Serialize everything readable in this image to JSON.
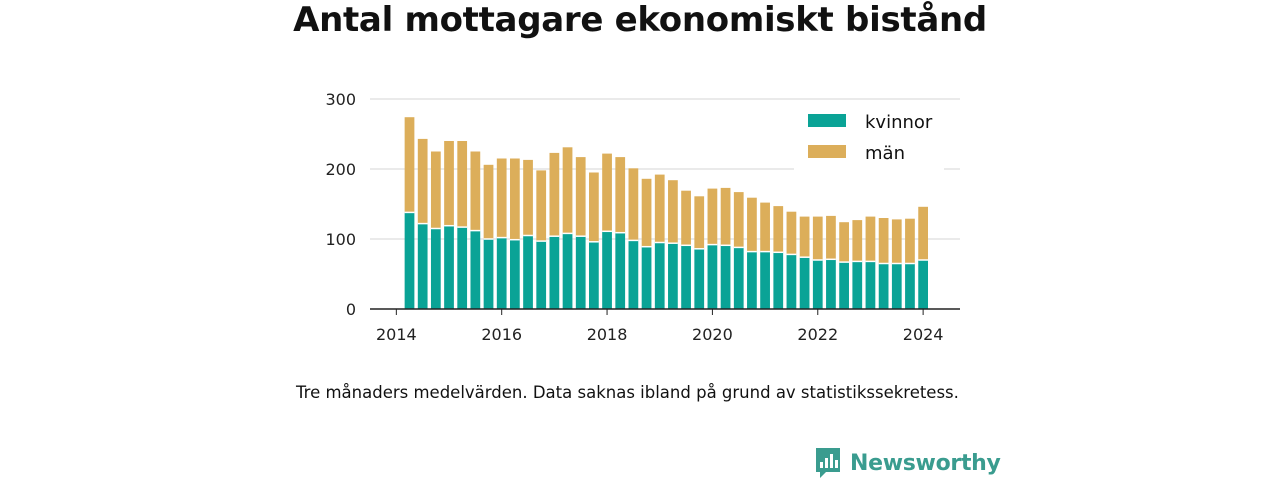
{
  "title": "Antal mottagare ekonomiskt bistånd",
  "footnote": "Tre månaders medelvärden. Data saknas ibland på grund av statistikssekretess.",
  "brand": {
    "name": "Newsworthy",
    "color": "#3a9c8f",
    "icon": "newsworthy-chart-bubble-icon"
  },
  "chart_data": {
    "type": "bar",
    "stacked": true,
    "x_is_time": true,
    "xlim": [
      2013.5,
      2024.7
    ],
    "ylim": [
      0,
      300
    ],
    "x_ticks": [
      2014,
      2016,
      2018,
      2020,
      2022,
      2024
    ],
    "y_ticks": [
      0,
      100,
      200,
      300
    ],
    "grid": "horizontal",
    "legend_position": "top-right",
    "x": [
      2014.25,
      2014.5,
      2014.75,
      2015.0,
      2015.25,
      2015.5,
      2015.75,
      2016.0,
      2016.25,
      2016.5,
      2016.75,
      2017.0,
      2017.25,
      2017.5,
      2017.75,
      2018.0,
      2018.25,
      2018.5,
      2018.75,
      2019.0,
      2019.25,
      2019.5,
      2019.75,
      2020.0,
      2020.25,
      2020.5,
      2020.75,
      2021.0,
      2021.25,
      2021.5,
      2021.75,
      2022.0,
      2022.25,
      2022.5,
      2022.75,
      2023.0,
      2023.25,
      2023.5,
      2023.75,
      2024.0
    ],
    "series": [
      {
        "name": "kvinnor",
        "color": "#0aa396",
        "values": [
          138,
          122,
          115,
          119,
          117,
          112,
          100,
          102,
          99,
          105,
          97,
          104,
          108,
          104,
          96,
          111,
          109,
          98,
          89,
          95,
          94,
          91,
          86,
          92,
          91,
          88,
          82,
          82,
          81,
          78,
          74,
          70,
          71,
          67,
          68,
          68,
          65,
          65,
          65,
          70
        ]
      },
      {
        "name": "män",
        "color": "#dcae5a",
        "values": [
          136,
          121,
          110,
          121,
          123,
          113,
          106,
          113,
          116,
          108,
          101,
          119,
          123,
          113,
          99,
          111,
          108,
          103,
          97,
          97,
          90,
          78,
          75,
          80,
          82,
          79,
          77,
          70,
          66,
          61,
          58,
          62,
          62,
          57,
          59,
          64,
          65,
          63,
          64,
          76
        ]
      }
    ]
  }
}
